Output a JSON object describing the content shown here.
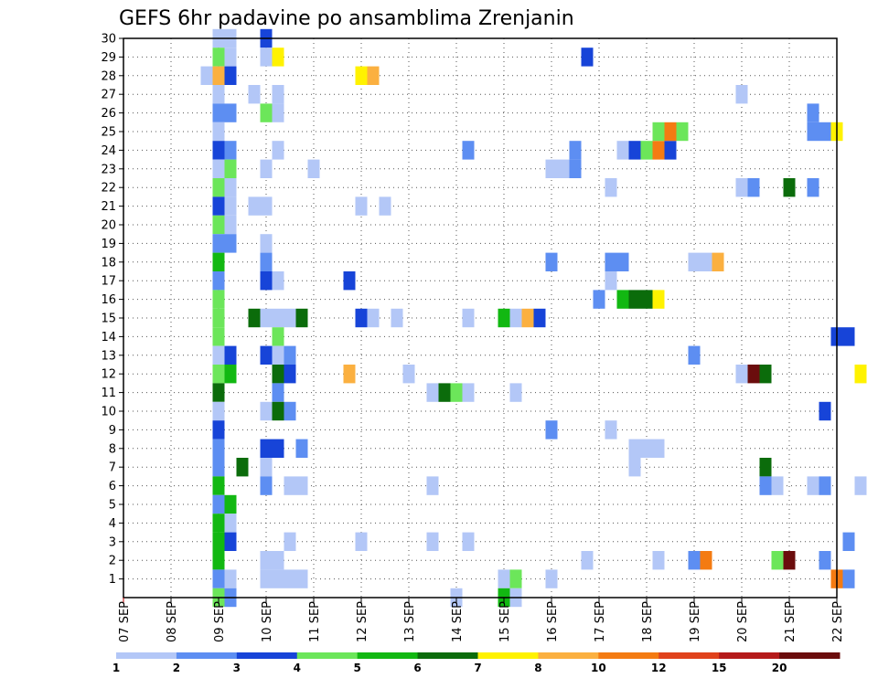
{
  "chart_data": {
    "type": "heatmap",
    "title": "GEFS 6hr padavine po ansamblima Zrenjanin",
    "xlabel": "",
    "ylabel": "",
    "x_tick_labels": [
      "07 SEP",
      "08 SEP",
      "09 SEP",
      "10 SEP",
      "11 SEP",
      "12 SEP",
      "13 SEP",
      "14 SEP",
      "15 SEP",
      "16 SEP",
      "17 SEP",
      "18 SEP",
      "19 SEP",
      "20 SEP",
      "21 SEP",
      "22 SEP"
    ],
    "xlim": [
      0,
      15
    ],
    "y_tick_labels": [
      "1",
      "2",
      "3",
      "4",
      "5",
      "6",
      "7",
      "8",
      "9",
      "10",
      "11",
      "12",
      "13",
      "14",
      "15",
      "16",
      "17",
      "18",
      "19",
      "20",
      "21",
      "22",
      "23",
      "24",
      "25",
      "26",
      "27",
      "28",
      "29",
      "30"
    ],
    "ylim": [
      0,
      30
    ],
    "grid": true,
    "colorbar": {
      "orientation": "horizontal",
      "colors": [
        "#b3c7f7",
        "#5d8ef2",
        "#1744d8",
        "#6ce65a",
        "#12b812",
        "#0b6c0b",
        "#fff200",
        "#fbb040",
        "#f47b12",
        "#e0421c",
        "#b51a1a",
        "#6b0d0d"
      ],
      "labels": [
        "1",
        "2",
        "3",
        "4",
        "5",
        "6",
        "7",
        "8",
        "10",
        "12",
        "15",
        "20"
      ]
    },
    "cells_note_units": "x in days since 07 SEP 00Z (6h steps), y = ensemble member, c = colour class index",
    "cells": [
      [
        2.0,
        30,
        0
      ],
      [
        2.25,
        30,
        0
      ],
      [
        2.0,
        29,
        3
      ],
      [
        2.25,
        29,
        0
      ],
      [
        2.0,
        28,
        7
      ],
      [
        1.75,
        28,
        0
      ],
      [
        2.25,
        28,
        2
      ],
      [
        2.0,
        27,
        0
      ],
      [
        2.0,
        26,
        1
      ],
      [
        2.25,
        26,
        1
      ],
      [
        2.0,
        25,
        0
      ],
      [
        2.0,
        24,
        2
      ],
      [
        2.25,
        24,
        1
      ],
      [
        2.0,
        23,
        0
      ],
      [
        2.25,
        23,
        3
      ],
      [
        2.0,
        22,
        3
      ],
      [
        2.25,
        22,
        0
      ],
      [
        2.0,
        21,
        2
      ],
      [
        2.25,
        21,
        0
      ],
      [
        2.0,
        20,
        3
      ],
      [
        2.25,
        20,
        0
      ],
      [
        2.0,
        19,
        1
      ],
      [
        2.25,
        19,
        1
      ],
      [
        2.0,
        18,
        4
      ],
      [
        2.0,
        17,
        1
      ],
      [
        2.0,
        16,
        3
      ],
      [
        2.0,
        15,
        3
      ],
      [
        2.0,
        14,
        3
      ],
      [
        2.0,
        13,
        0
      ],
      [
        2.25,
        13,
        2
      ],
      [
        2.0,
        12,
        3
      ],
      [
        2.25,
        12,
        4
      ],
      [
        2.0,
        11,
        5
      ],
      [
        2.0,
        10,
        0
      ],
      [
        2.0,
        9,
        2
      ],
      [
        2.0,
        8,
        1
      ],
      [
        2.0,
        7,
        1
      ],
      [
        2.0,
        6,
        4
      ],
      [
        2.0,
        5,
        1
      ],
      [
        2.25,
        5,
        4
      ],
      [
        2.0,
        4,
        4
      ],
      [
        2.25,
        4,
        0
      ],
      [
        2.0,
        3,
        4
      ],
      [
        2.25,
        3,
        2
      ],
      [
        2.0,
        2,
        4
      ],
      [
        2.0,
        1,
        1
      ],
      [
        2.25,
        1,
        0
      ],
      [
        2.0,
        0,
        3
      ],
      [
        2.25,
        0,
        1
      ],
      [
        3.0,
        30,
        2
      ],
      [
        3.0,
        29,
        0
      ],
      [
        3.25,
        29,
        6
      ],
      [
        2.75,
        27,
        0
      ],
      [
        3.25,
        27,
        0
      ],
      [
        3.0,
        26,
        3
      ],
      [
        3.25,
        26,
        0
      ],
      [
        3.25,
        24,
        0
      ],
      [
        3.0,
        23,
        0
      ],
      [
        2.75,
        21,
        0
      ],
      [
        3.0,
        21,
        0
      ],
      [
        3.0,
        19,
        0
      ],
      [
        3.0,
        18,
        1
      ],
      [
        3.0,
        17,
        2
      ],
      [
        3.25,
        17,
        0
      ],
      [
        2.75,
        15,
        5
      ],
      [
        3.0,
        15,
        0
      ],
      [
        3.25,
        15,
        0
      ],
      [
        3.5,
        15,
        0
      ],
      [
        3.75,
        15,
        5
      ],
      [
        3.25,
        14,
        3
      ],
      [
        3.0,
        13,
        2
      ],
      [
        3.25,
        13,
        0
      ],
      [
        3.5,
        13,
        1
      ],
      [
        3.25,
        12,
        5
      ],
      [
        3.5,
        12,
        2
      ],
      [
        3.25,
        11,
        1
      ],
      [
        3.0,
        10,
        0
      ],
      [
        3.25,
        10,
        5
      ],
      [
        3.5,
        10,
        1
      ],
      [
        3.0,
        8,
        2
      ],
      [
        3.25,
        8,
        2
      ],
      [
        3.75,
        8,
        1
      ],
      [
        2.5,
        7,
        5
      ],
      [
        3.0,
        7,
        0
      ],
      [
        3.0,
        6,
        1
      ],
      [
        3.5,
        6,
        0
      ],
      [
        3.75,
        6,
        0
      ],
      [
        3.5,
        3,
        0
      ],
      [
        3.0,
        2,
        0
      ],
      [
        3.25,
        2,
        0
      ],
      [
        3.0,
        1,
        0
      ],
      [
        3.25,
        1,
        0
      ],
      [
        3.5,
        1,
        0
      ],
      [
        3.75,
        1,
        0
      ],
      [
        4.0,
        23,
        0
      ],
      [
        5.0,
        28,
        6
      ],
      [
        5.25,
        28,
        7
      ],
      [
        5.0,
        21,
        0
      ],
      [
        5.5,
        21,
        0
      ],
      [
        4.75,
        17,
        2
      ],
      [
        5.0,
        15,
        2
      ],
      [
        5.25,
        15,
        0
      ],
      [
        5.75,
        15,
        0
      ],
      [
        4.75,
        12,
        7
      ],
      [
        5.0,
        3,
        0
      ],
      [
        6.0,
        12,
        0
      ],
      [
        6.5,
        11,
        0
      ],
      [
        6.75,
        11,
        5
      ],
      [
        7.0,
        11,
        3
      ],
      [
        7.25,
        11,
        0
      ],
      [
        6.5,
        6,
        0
      ],
      [
        6.5,
        3,
        0
      ],
      [
        7.25,
        3,
        0
      ],
      [
        7.25,
        24,
        1
      ],
      [
        7.25,
        15,
        0
      ],
      [
        7.0,
        0,
        0
      ],
      [
        8.0,
        15,
        4
      ],
      [
        8.25,
        15,
        0
      ],
      [
        8.5,
        15,
        7
      ],
      [
        8.75,
        15,
        2
      ],
      [
        8.25,
        11,
        0
      ],
      [
        8.0,
        1,
        0
      ],
      [
        8.25,
        1,
        3
      ],
      [
        8.0,
        0,
        4
      ],
      [
        8.25,
        0,
        0
      ],
      [
        9.0,
        23,
        0
      ],
      [
        9.25,
        23,
        0
      ],
      [
        9.5,
        24,
        1
      ],
      [
        9.5,
        23,
        1
      ],
      [
        9.75,
        29,
        2
      ],
      [
        9.0,
        18,
        1
      ],
      [
        9.0,
        9,
        1
      ],
      [
        9.0,
        1,
        0
      ],
      [
        10.25,
        22,
        0
      ],
      [
        10.0,
        16,
        1
      ],
      [
        10.25,
        18,
        1
      ],
      [
        10.5,
        18,
        1
      ],
      [
        10.25,
        17,
        0
      ],
      [
        10.25,
        9,
        0
      ],
      [
        9.75,
        2,
        0
      ],
      [
        10.5,
        24,
        0
      ],
      [
        10.75,
        24,
        2
      ],
      [
        11.0,
        24,
        3
      ],
      [
        11.25,
        24,
        8
      ],
      [
        11.5,
        24,
        2
      ],
      [
        11.25,
        25,
        3
      ],
      [
        11.5,
        25,
        8
      ],
      [
        11.75,
        25,
        3
      ],
      [
        10.5,
        16,
        4
      ],
      [
        10.75,
        16,
        5
      ],
      [
        11.0,
        16,
        5
      ],
      [
        11.25,
        16,
        6
      ],
      [
        10.75,
        8,
        0
      ],
      [
        11.0,
        8,
        0
      ],
      [
        11.25,
        8,
        0
      ],
      [
        10.75,
        7,
        0
      ],
      [
        11.25,
        2,
        0
      ],
      [
        12.0,
        18,
        0
      ],
      [
        12.25,
        18,
        0
      ],
      [
        12.5,
        18,
        7
      ],
      [
        12.0,
        13,
        1
      ],
      [
        12.0,
        2,
        1
      ],
      [
        12.25,
        2,
        8
      ],
      [
        13.0,
        27,
        0
      ],
      [
        13.0,
        22,
        0
      ],
      [
        13.25,
        22,
        1
      ],
      [
        13.0,
        12,
        0
      ],
      [
        13.25,
        12,
        11
      ],
      [
        13.5,
        12,
        5
      ],
      [
        13.5,
        7,
        5
      ],
      [
        13.5,
        6,
        1
      ],
      [
        13.75,
        6,
        0
      ],
      [
        13.75,
        2,
        3
      ],
      [
        14.0,
        2,
        11
      ],
      [
        14.0,
        22,
        5
      ],
      [
        14.5,
        22,
        1
      ],
      [
        14.5,
        26,
        1
      ],
      [
        14.5,
        25,
        1
      ],
      [
        14.75,
        25,
        1
      ],
      [
        15.0,
        25,
        6
      ],
      [
        14.5,
        6,
        0
      ],
      [
        14.75,
        6,
        1
      ],
      [
        15.0,
        14,
        2
      ],
      [
        15.25,
        14,
        2
      ],
      [
        14.75,
        10,
        2
      ],
      [
        15.25,
        3,
        1
      ],
      [
        14.75,
        2,
        1
      ],
      [
        15.0,
        1,
        8
      ],
      [
        15.25,
        1,
        1
      ],
      [
        15.5,
        12,
        6
      ],
      [
        15.5,
        6,
        0
      ]
    ]
  }
}
